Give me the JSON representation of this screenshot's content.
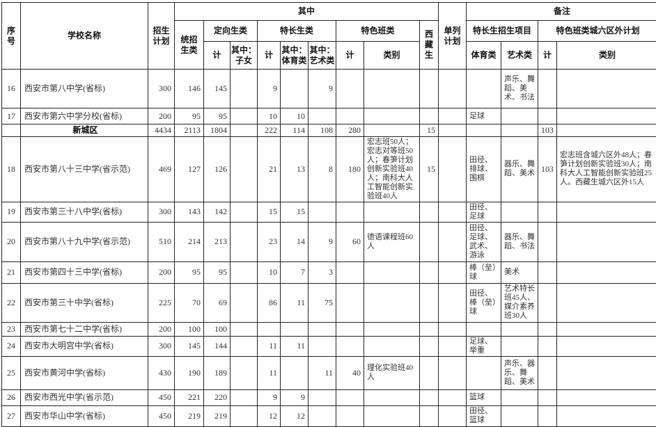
{
  "table": {
    "header": {
      "xuhao": "序\n号",
      "school_name": "学校名称",
      "enrollment_plan": "招生\n计划",
      "among_which": "其中",
      "remarks": "备注",
      "tongzhao": "统招\n生类",
      "dingxiang": "定向生类",
      "techang": "特长生类",
      "tese": "特色班类",
      "xizang": "西\n藏\n生",
      "danlie": "单列\n计划",
      "techang_project": "特长生招生项目",
      "tese_outside": "特色班类城六区外计划",
      "ji": "计",
      "qizhong_zinv": "其中：\n子女",
      "qizhong_tiyu": "其中：\n体育类",
      "qizhong_yishu": "其中：\n艺术类",
      "leibie": "类别",
      "tiyulei": "体育类",
      "yishulei": "艺术类"
    },
    "rows": [
      {
        "district": false,
        "cells": [
          "16",
          "西安市第八中学(省标)",
          "300",
          "146",
          "145",
          "",
          "9",
          "",
          "9",
          "",
          "",
          "",
          "",
          "",
          "声乐、舞蹈、美术、书法",
          "",
          ""
        ]
      },
      {
        "district": false,
        "cells": [
          "17",
          "西安市第六中学分校(省标)",
          "200",
          "95",
          "95",
          "",
          "10",
          "10",
          "",
          "",
          "",
          "",
          "",
          "足球",
          "",
          "",
          ""
        ]
      },
      {
        "district": true,
        "cells": [
          "",
          "新城区",
          "4434",
          "2113",
          "1804",
          "",
          "222",
          "114",
          "108",
          "280",
          "",
          "15",
          "",
          "",
          "",
          "103",
          ""
        ]
      },
      {
        "district": false,
        "cells": [
          "18",
          "西安市第八十三中学(省示范)",
          "469",
          "127",
          "126",
          "",
          "21",
          "13",
          "8",
          "180",
          "宏志班50人；宏志对等班50人；春笋计划创新实验班40人；南科大人工智能创新实验班40人",
          "15",
          "",
          "田径、排球、围棋",
          "器乐、舞蹈、美术",
          "103",
          "宏志班含城六区外48人；春笋计划创新实验班30人；南科大人工智能创新实验班25人。西藏生城六区外15人"
        ]
      },
      {
        "district": false,
        "cells": [
          "19",
          "西安市第三十八中学(省标)",
          "300",
          "143",
          "142",
          "",
          "15",
          "15",
          "",
          "",
          "",
          "",
          "",
          "田径、足球",
          "",
          "",
          ""
        ]
      },
      {
        "district": false,
        "cells": [
          "20",
          "西安市第八十九中学(省示范)",
          "510",
          "214",
          "213",
          "",
          "23",
          "14",
          "9",
          "60",
          "德语课程班60人",
          "",
          "",
          "田径、足球、武术、游泳",
          "器乐、舞蹈、书法",
          "",
          ""
        ]
      },
      {
        "district": false,
        "cells": [
          "21",
          "西安市第四十三中学(省标)",
          "200",
          "95",
          "95",
          "",
          "10",
          "7",
          "3",
          "",
          "",
          "",
          "",
          "棒（垒）球",
          "美术",
          "",
          ""
        ]
      },
      {
        "district": false,
        "cells": [
          "22",
          "西安市第三十中学(省标)",
          "225",
          "70",
          "69",
          "",
          "86",
          "11",
          "75",
          "",
          "",
          "",
          "",
          "田径、棒（垒）球",
          "艺术特长班45人、媒介素养班30人",
          "",
          ""
        ]
      },
      {
        "district": false,
        "cells": [
          "23",
          "西安市第七十二中学(省标)",
          "200",
          "100",
          "100",
          "",
          "",
          "",
          "",
          "",
          "",
          "",
          "",
          "",
          "",
          "",
          ""
        ]
      },
      {
        "district": false,
        "cells": [
          "24",
          "西安市大明宫中学(省标)",
          "300",
          "145",
          "144",
          "",
          "11",
          "11",
          "",
          "",
          "",
          "",
          "",
          "足球、举重",
          "",
          "",
          ""
        ]
      },
      {
        "district": false,
        "cells": [
          "25",
          "西安市黄河中学(省标)",
          "430",
          "190",
          "189",
          "",
          "11",
          "",
          "11",
          "40",
          "理化实验班40人",
          "",
          "",
          "",
          "声乐、器乐、舞蹈、美术",
          "",
          ""
        ]
      },
      {
        "district": false,
        "cells": [
          "26",
          "西安市西光中学(省示范)",
          "450",
          "221",
          "220",
          "",
          "9",
          "9",
          "",
          "",
          "",
          "",
          "",
          "篮球",
          "",
          "",
          ""
        ]
      },
      {
        "district": false,
        "cells": [
          "27",
          "西安市华山中学(省标)",
          "450",
          "219",
          "219",
          "",
          "12",
          "12",
          "",
          "",
          "",
          "",
          "",
          "田径、篮球",
          "",
          "",
          ""
        ]
      }
    ]
  }
}
